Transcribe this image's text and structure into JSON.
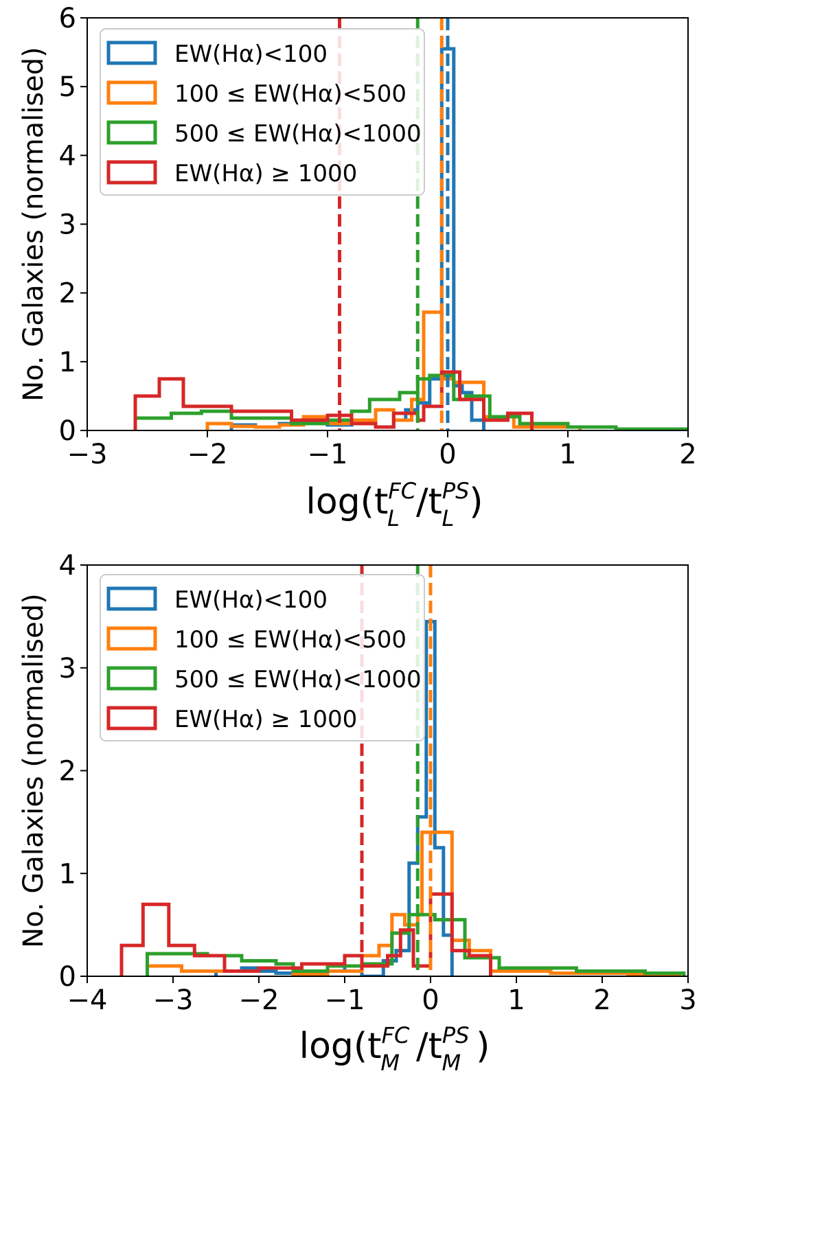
{
  "colors": {
    "blue": "#1f77b4",
    "orange": "#ff7f0e",
    "green": "#2ca02c",
    "red": "#d62728"
  },
  "chart_data": [
    {
      "type": "histogram",
      "ylabel": "No. Galaxies (normalised)",
      "xlabel": {
        "base": "log(t",
        "sup1": "FC",
        "sub1": "L",
        "mid": "/t",
        "sup2": "PS",
        "sub2": "L",
        "end": ")"
      },
      "xlim": [
        -3,
        2
      ],
      "ylim": [
        0,
        6
      ],
      "xticks": [
        "−3",
        "−2",
        "−1",
        "0",
        "1",
        "2"
      ],
      "xtick_values": [
        -3,
        -2,
        -1,
        0,
        1,
        2
      ],
      "yticks": [
        "0",
        "1",
        "2",
        "3",
        "4",
        "5",
        "6"
      ],
      "ytick_values": [
        0,
        1,
        2,
        3,
        4,
        5,
        6
      ],
      "legend": [
        "EW(Hα)<100",
        "100 ≤ EW(Hα)<500",
        "500 ≤ EW(Hα)<1000",
        "EW(Hα) ≥ 1000"
      ],
      "legend_position": "upper-left",
      "series": [
        {
          "name": "EW(Hα)<100",
          "color": "blue",
          "edges": [
            -1.8,
            -1.6,
            -1.4,
            -1.2,
            -1.0,
            -0.8,
            -0.6,
            -0.45,
            -0.35,
            -0.25,
            -0.15,
            -0.05,
            0.05,
            0.12,
            0.2,
            0.3
          ],
          "counts": [
            0.08,
            0.05,
            0.1,
            0.12,
            0.08,
            0.15,
            0.05,
            0.15,
            0.3,
            0.4,
            0.75,
            5.55,
            0.65,
            0.55,
            0.15
          ]
        },
        {
          "name": "100 ≤ EW(Hα)<500",
          "color": "orange",
          "edges": [
            -2.0,
            -1.8,
            -1.6,
            -1.4,
            -1.2,
            -1.0,
            -0.8,
            -0.6,
            -0.45,
            -0.3,
            -0.2,
            -0.05,
            0.05,
            0.3,
            0.55,
            1.1
          ],
          "counts": [
            0.1,
            0.06,
            0.05,
            0.08,
            0.2,
            0.1,
            0.15,
            0.3,
            0.15,
            0.45,
            1.72,
            0.75,
            0.7,
            0.2,
            0.05
          ]
        },
        {
          "name": "500 ≤ EW(Hα)<1000",
          "color": "green",
          "edges": [
            -2.6,
            -2.3,
            -2.05,
            -1.8,
            -1.6,
            -1.3,
            -1.0,
            -0.8,
            -0.65,
            -0.4,
            -0.25,
            -0.15,
            0.05,
            0.15,
            0.35,
            0.6,
            1.0,
            1.4,
            2.0
          ],
          "counts": [
            0.18,
            0.25,
            0.28,
            0.18,
            0.18,
            0.1,
            0.15,
            0.28,
            0.45,
            0.55,
            0.75,
            0.8,
            0.45,
            0.5,
            0.2,
            0.1,
            0.05,
            0.02
          ]
        },
        {
          "name": "EW(Hα) ≥ 1000",
          "color": "red",
          "edges": [
            -2.6,
            -2.4,
            -2.2,
            -1.8,
            -1.3,
            -1.0,
            -0.8,
            -0.6,
            -0.45,
            -0.25,
            -0.2,
            -0.05,
            0.1,
            0.3,
            0.5,
            0.7
          ],
          "counts": [
            0.5,
            0.75,
            0.35,
            0.28,
            0.15,
            0.22,
            0.1,
            0.05,
            0.25,
            0.15,
            0.35,
            0.85,
            0.45,
            0.15,
            0.25
          ]
        }
      ],
      "vlines": [
        {
          "x": 0.0,
          "color": "blue"
        },
        {
          "x": -0.05,
          "color": "orange"
        },
        {
          "x": -0.25,
          "color": "green"
        },
        {
          "x": -0.9,
          "color": "red"
        }
      ]
    },
    {
      "type": "histogram",
      "ylabel": "No. Galaxies (normalised)",
      "xlabel": {
        "base": "log(t",
        "sup1": "FC",
        "sub1": "M",
        "mid": "/t",
        "sup2": "PS",
        "sub2": "M",
        "end": ")"
      },
      "xlim": [
        -4,
        3
      ],
      "ylim": [
        0,
        4
      ],
      "xticks": [
        "−4",
        "−3",
        "−2",
        "−1",
        "0",
        "1",
        "2",
        "3"
      ],
      "xtick_values": [
        -4,
        -3,
        -2,
        -1,
        0,
        1,
        2,
        3
      ],
      "yticks": [
        "0",
        "1",
        "2",
        "3",
        "4"
      ],
      "ytick_values": [
        0,
        1,
        2,
        3,
        4
      ],
      "legend": [
        "EW(Hα)<100",
        "100 ≤ EW(Hα)<500",
        "500 ≤ EW(Hα)<1000",
        "EW(Hα) ≥ 1000"
      ],
      "legend_position": "upper-left",
      "series": [
        {
          "name": "EW(Hα)<100",
          "color": "blue",
          "edges": [
            -2.5,
            -2.2,
            -2.0,
            -1.8,
            -1.6,
            -1.3,
            -1.0,
            -0.8,
            -0.55,
            -0.4,
            -0.25,
            -0.15,
            -0.05,
            0.05,
            0.15,
            0.25
          ],
          "counts": [
            0.05,
            0.08,
            0.05,
            0.03,
            0.02,
            0.05,
            0.1,
            0.0,
            0.15,
            0.25,
            1.1,
            1.55,
            3.45,
            1.25,
            0.4
          ]
        },
        {
          "name": "100 ≤ EW(Hα)<500",
          "color": "orange",
          "edges": [
            -3.3,
            -3.1,
            -2.9,
            -2.5,
            -2.0,
            -1.6,
            -1.2,
            -0.8,
            -0.6,
            -0.45,
            -0.3,
            -0.15,
            -0.1,
            0.25,
            0.45,
            0.7,
            1.4,
            2.3,
            2.9
          ],
          "counts": [
            0.1,
            0.1,
            0.05,
            0.05,
            0.08,
            0.02,
            0.05,
            0.2,
            0.3,
            0.6,
            0.5,
            0.6,
            1.4,
            0.35,
            0.25,
            0.05,
            0.03,
            0.02
          ]
        },
        {
          "name": "500 ≤ EW(Hα)<1000",
          "color": "green",
          "edges": [
            -3.3,
            -2.9,
            -2.6,
            -2.2,
            -1.8,
            -1.6,
            -1.2,
            -0.8,
            -0.45,
            -0.25,
            -0.1,
            0.05,
            0.2,
            0.4,
            0.8,
            1.7,
            2.5,
            2.95
          ],
          "counts": [
            0.22,
            0.22,
            0.2,
            0.15,
            0.12,
            0.05,
            0.1,
            0.12,
            0.42,
            0.6,
            0.6,
            0.55,
            0.55,
            0.18,
            0.08,
            0.05,
            0.03
          ]
        },
        {
          "name": "EW(Hα) ≥ 1000",
          "color": "red",
          "edges": [
            -3.6,
            -3.35,
            -3.05,
            -2.75,
            -2.4,
            -2.0,
            -1.5,
            -1.0,
            -0.8,
            -0.5,
            -0.35,
            -0.2,
            0.0,
            0.25,
            0.45,
            0.7
          ],
          "counts": [
            0.3,
            0.7,
            0.3,
            0.2,
            0.05,
            0.08,
            0.12,
            0.2,
            0.1,
            0.2,
            0.45,
            0.1,
            0.8,
            0.25,
            0.2
          ]
        }
      ],
      "vlines": [
        {
          "x": -0.8,
          "color": "red"
        },
        {
          "x": -0.15,
          "color": "green"
        },
        {
          "x": 0.0,
          "color": "orange"
        }
      ]
    }
  ]
}
